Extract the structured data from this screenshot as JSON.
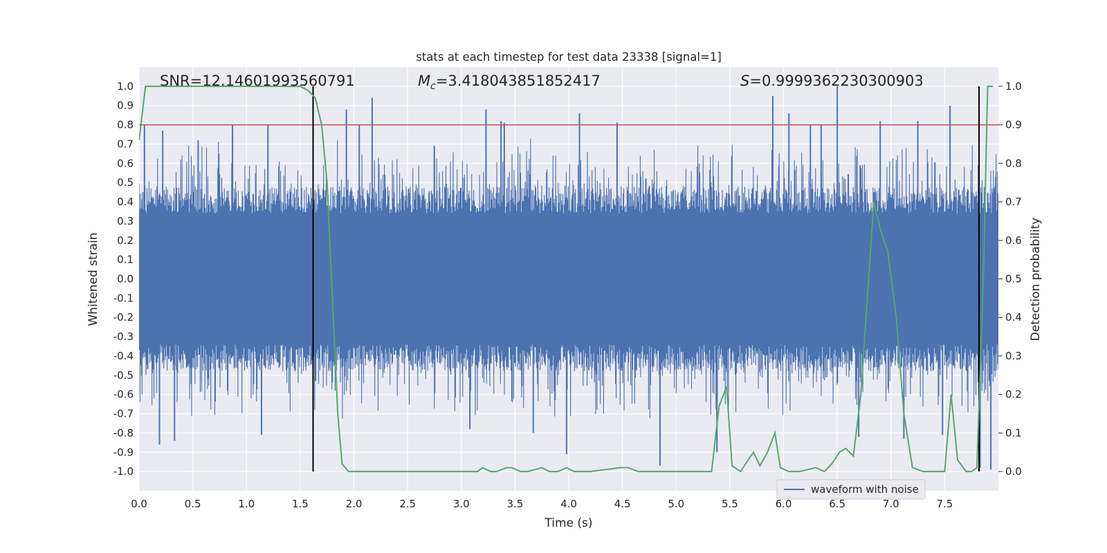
{
  "chart_data": {
    "type": "line",
    "title": "stats at each timestep for test data 23338 [signal=1]",
    "xlabel": "Time (s)",
    "ylabel": "Whitened strain",
    "ylabel_right": "Detection probability",
    "xlim": [
      0.0,
      8.0
    ],
    "ylim": [
      -1.1,
      1.1
    ],
    "ylim_right": [
      -0.05,
      1.05
    ],
    "xticks": [
      "0.0",
      "0.5",
      "1.0",
      "1.5",
      "2.0",
      "2.5",
      "3.0",
      "3.5",
      "4.0",
      "4.5",
      "5.0",
      "5.5",
      "6.0",
      "6.5",
      "7.0",
      "7.5"
    ],
    "yticks": [
      "1.0",
      "0.9",
      "0.8",
      "0.7",
      "0.6",
      "0.5",
      "0.4",
      "0.3",
      "0.2",
      "0.1",
      "0.0",
      "-0.1",
      "-0.2",
      "-0.3",
      "-0.4",
      "-0.5",
      "-0.6",
      "-0.7",
      "-0.8",
      "-0.9",
      "-1.0"
    ],
    "yticks_right": [
      "1.0",
      "0.9",
      "0.8",
      "0.7",
      "0.6",
      "0.5",
      "0.4",
      "0.3",
      "0.2",
      "0.1",
      "0.0"
    ],
    "grid": true,
    "legend": {
      "placement": "lower-right",
      "entries": [
        "waveform with noise"
      ]
    },
    "annotations": {
      "snr": "SNR=12.14601993560791",
      "mc_symbol": "M",
      "mc_sub": "c",
      "mc_value": "=3.418043851852417",
      "s_symbol": "S",
      "s_value": "=0.9999362230300903"
    },
    "series": [
      {
        "name": "waveform with noise",
        "color": "#4c72b0",
        "typical_amplitude": 0.4,
        "peaks_up": [
          [
            0.05,
            0.8
          ],
          [
            0.22,
            0.77
          ],
          [
            0.55,
            0.72
          ],
          [
            0.87,
            0.8
          ],
          [
            1.2,
            0.8
          ],
          [
            1.93,
            0.88
          ],
          [
            2.05,
            0.8
          ],
          [
            2.17,
            0.94
          ],
          [
            3.23,
            0.88
          ],
          [
            3.37,
            0.82
          ],
          [
            3.4,
            0.81
          ],
          [
            4.1,
            0.86
          ],
          [
            4.45,
            0.81
          ],
          [
            5.9,
            0.95
          ],
          [
            6.05,
            0.86
          ],
          [
            6.5,
            1.0
          ],
          [
            6.25,
            0.8
          ],
          [
            6.35,
            0.8
          ],
          [
            6.9,
            0.82
          ],
          [
            7.25,
            0.82
          ],
          [
            7.55,
            0.9
          ]
        ],
        "peaks_down": [
          [
            0.19,
            -0.86
          ],
          [
            0.33,
            -0.84
          ],
          [
            1.14,
            -0.81
          ],
          [
            3.08,
            -0.78
          ],
          [
            3.67,
            -0.8
          ],
          [
            3.98,
            -0.91
          ],
          [
            4.85,
            -0.97
          ],
          [
            5.38,
            -0.9
          ],
          [
            6.7,
            -0.82
          ],
          [
            7.12,
            -0.83
          ],
          [
            7.83,
            -0.98
          ],
          [
            7.93,
            -0.99
          ],
          [
            7.48,
            -0.81
          ]
        ]
      },
      {
        "name": "",
        "color": "#55a868",
        "axis": "right",
        "x": [
          0.0,
          0.06,
          0.12,
          0.2,
          0.5,
          0.9,
          1.2,
          1.5,
          1.57,
          1.64,
          1.7,
          1.75,
          1.8,
          1.85,
          1.89,
          1.95,
          2.1,
          2.4,
          2.8,
          3.0,
          3.15,
          3.2,
          3.27,
          3.33,
          3.42,
          3.47,
          3.55,
          3.62,
          3.75,
          3.82,
          3.9,
          3.98,
          4.05,
          4.2,
          4.48,
          4.55,
          4.65,
          5.0,
          5.25,
          5.3,
          5.33,
          5.4,
          5.47,
          5.52,
          5.6,
          5.67,
          5.72,
          5.78,
          5.85,
          5.92,
          5.97,
          6.05,
          6.15,
          6.3,
          6.38,
          6.45,
          6.52,
          6.58,
          6.65,
          6.72,
          6.78,
          6.84,
          6.9,
          6.97,
          7.05,
          7.12,
          7.2,
          7.3,
          7.4,
          7.5,
          7.56,
          7.62,
          7.7,
          7.75,
          7.8,
          7.86,
          7.9,
          7.95
        ],
        "y": [
          0.86,
          1.0,
          1.0,
          1.0,
          1.0,
          1.0,
          1.0,
          1.0,
          0.99,
          0.97,
          0.9,
          0.75,
          0.45,
          0.15,
          0.02,
          0.0,
          0.0,
          0.0,
          0.0,
          0.0,
          0.0,
          0.01,
          0.0,
          0.0,
          0.01,
          0.01,
          0.0,
          0.0,
          0.01,
          0.0,
          0.0,
          0.01,
          0.0,
          0.0,
          0.01,
          0.01,
          0.0,
          0.0,
          0.0,
          0.0,
          0.0,
          0.17,
          0.22,
          0.015,
          0.0,
          0.03,
          0.05,
          0.015,
          0.05,
          0.1,
          0.01,
          0.0,
          0.0,
          0.01,
          0.0,
          0.02,
          0.05,
          0.06,
          0.04,
          0.2,
          0.45,
          0.7,
          0.63,
          0.57,
          0.4,
          0.15,
          0.01,
          0.0,
          0.0,
          0.0,
          0.2,
          0.03,
          0.0,
          0.0,
          0.01,
          0.5,
          1.0,
          1.0
        ]
      }
    ],
    "hlines": [
      {
        "y": 0.8,
        "color": "#c44e52"
      }
    ],
    "vlines": [
      {
        "x": 1.62,
        "ymin": -1.0,
        "ymax": 1.0,
        "color": "#000000"
      },
      {
        "x": 7.82,
        "ymin": -1.0,
        "ymax": 1.0,
        "color": "#000000"
      }
    ]
  }
}
